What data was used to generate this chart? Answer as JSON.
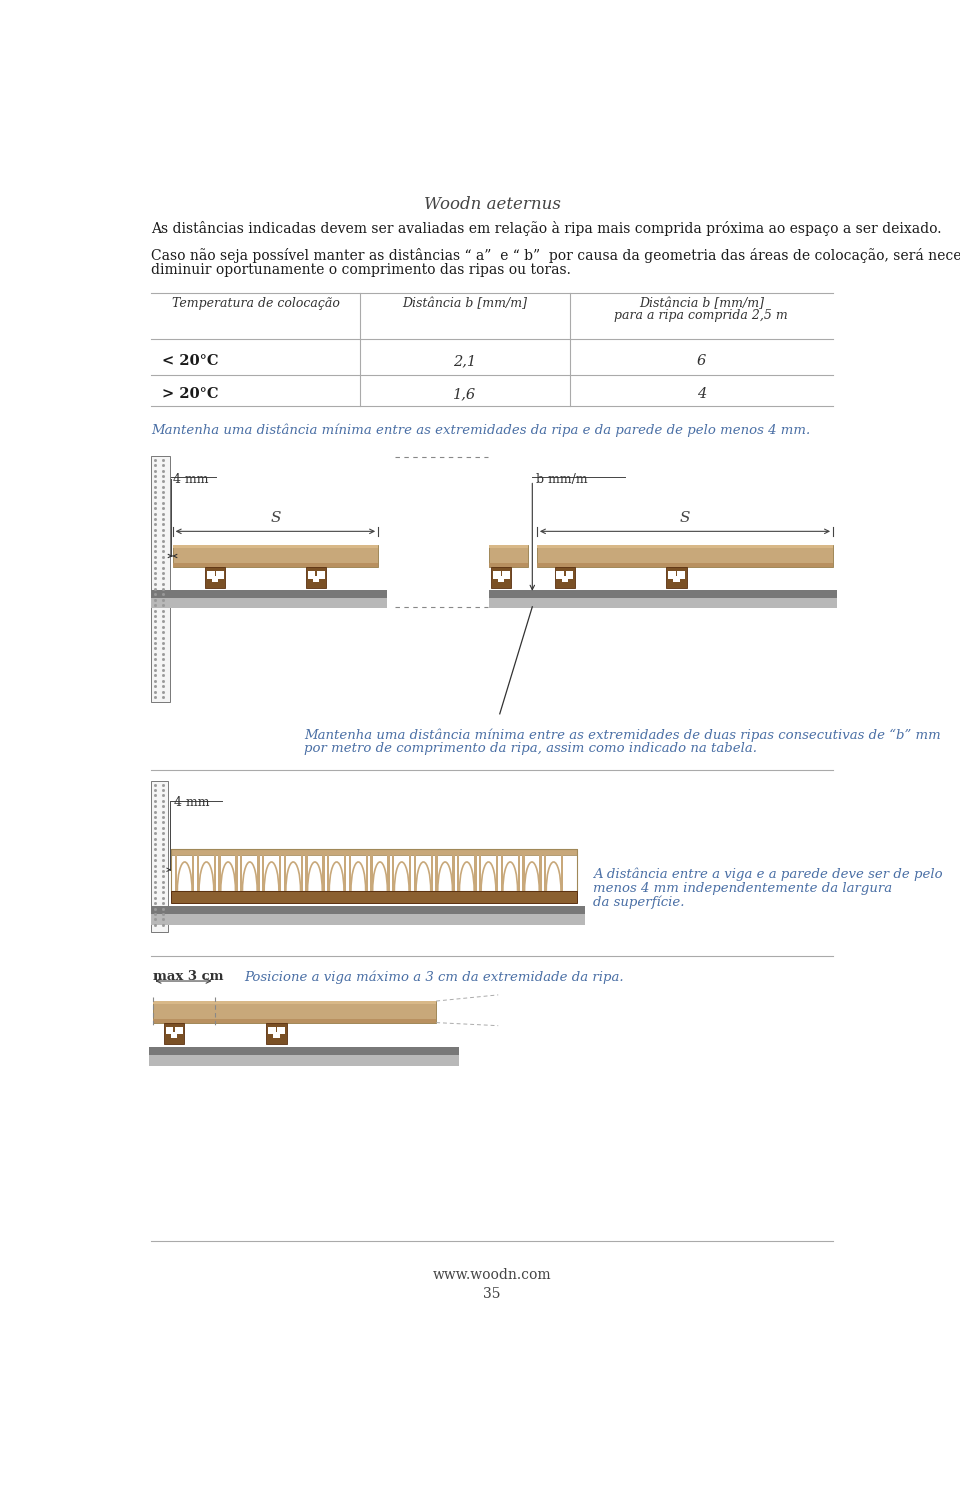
{
  "title": "Woodn aeternus",
  "page_number": "35",
  "website": "www.woodn.com",
  "bg_color": "#ffffff",
  "text_color": "#1a1a1a",
  "blue_text_color": "#4a6fa5",
  "table_text_color": "#333333",
  "para1": "As distâncias indicadas devem ser avaliadas em relação à ripa mais comprida próxima ao espaço a ser deixado.",
  "para2a": "Caso não seja possível manter as distâncias “ a”  e “ b”  por causa da geometria das áreas de colocação, será necessário",
  "para2b": "diminuir oportunamente o comprimento das ripas ou toras.",
  "col1_header": "Temperatura de colocação",
  "col2_header": "Distância b [mm/m]",
  "col3_header_l1": "Distância b [mm/m]",
  "col3_header_l2": "para a ripa comprida 2,5 m",
  "row1_c1": "< 20°C",
  "row1_c2": "2,1",
  "row1_c3": "6",
  "row2_c1": "> 20°C",
  "row2_c2": "1,6",
  "row2_c3": "4",
  "caption1": "Mantenha uma distância mínima entre as extremidades da ripa e da parede de pelo menos 4 mm.",
  "label_4mm": "4 mm",
  "label_b_mmm": "b mm/m",
  "label_s": "S",
  "caption2_l1": "Mantenha uma distância mínima entre as extremidades de duas ripas consecutivas de “b” mm",
  "caption2_l2": "por metro de comprimento da ripa, assim como indicado na tabela.",
  "label_4mm_2": "4 mm",
  "caption3_l1": "A distância entre a viga e a parede deve ser de pelo",
  "caption3_l2": "menos 4 mm independentemente da largura",
  "caption3_l3": "da superfície.",
  "label_max3cm": "max 3 cm",
  "caption4": "Posicione a viga máximo a 3 cm da extremidade da ripa.",
  "wood_color": "#c8a87a",
  "wood_mid": "#b89060",
  "wood_dark": "#8b6030",
  "clip_color": "#7a5025",
  "wall_bg": "#f5f5f5",
  "wall_dot": "#999999",
  "ground_top": "#888888",
  "ground_bot": "#b0b0b0",
  "line_gray": "#aaaaaa",
  "line_dark": "#444444"
}
